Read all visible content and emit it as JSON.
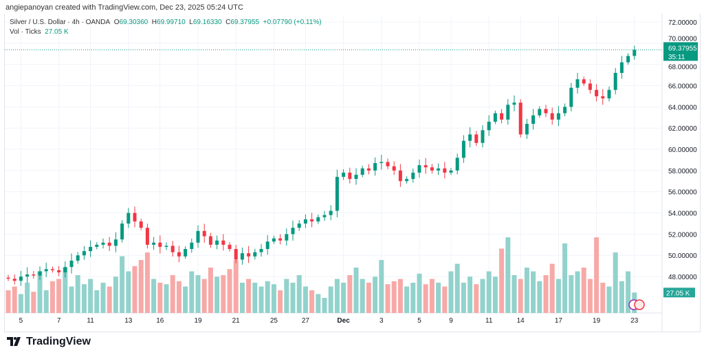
{
  "credit": "angiepanoyan created with TradingView.com, Dec 23, 2025 05:24 UTC",
  "legend": {
    "symbol": "Silver / U.S. Dollar · 4h · OANDA",
    "o_label": "O",
    "o": "69.30360",
    "h_label": "H",
    "h": "69.99710",
    "l_label": "L",
    "l": "69.16330",
    "c_label": "C",
    "c": "69.37955",
    "change": "+0.07790 (+0.11%)",
    "vol_label": "Vol · Ticks",
    "vol": "27.05 K"
  },
  "price_label": {
    "price": "69.37955",
    "countdown": "35:11"
  },
  "vol_label": "27.05 K",
  "logo": "TradingView",
  "colors": {
    "up": "#089981",
    "down": "#f23645",
    "vol_up": "#92d2cc",
    "vol_down": "#f7a9a7"
  },
  "chart_data": {
    "type": "candlestick",
    "title": "Silver / U.S. Dollar · 4h · OANDA",
    "yticks": [
      "72.00000",
      "70.00000",
      "68.00000",
      "66.00000",
      "64.00000",
      "62.00000",
      "60.00000",
      "58.00000",
      "56.00000",
      "54.00000",
      "52.00000",
      "50.00000",
      "48.00000"
    ],
    "ylim": [
      46.3,
      72.6
    ],
    "xticks": [
      {
        "label": "5",
        "i": 2
      },
      {
        "label": "7",
        "i": 8
      },
      {
        "label": "11",
        "i": 13
      },
      {
        "label": "13",
        "i": 19
      },
      {
        "label": "16",
        "i": 24
      },
      {
        "label": "19",
        "i": 30
      },
      {
        "label": "21",
        "i": 36
      },
      {
        "label": "25",
        "i": 42
      },
      {
        "label": "27",
        "i": 47
      },
      {
        "label": "Dec",
        "i": 53
      },
      {
        "label": "3",
        "i": 59
      },
      {
        "label": "5",
        "i": 65
      },
      {
        "label": "9",
        "i": 70
      },
      {
        "label": "11",
        "i": 76
      },
      {
        "label": "14",
        "i": 81
      },
      {
        "label": "17",
        "i": 87
      },
      {
        "label": "19",
        "i": 93
      },
      {
        "label": "23",
        "i": 99
      }
    ],
    "open0": 47.9,
    "close": [
      47.8,
      47.6,
      48.0,
      48.2,
      48.1,
      48.5,
      48.7,
      48.6,
      48.4,
      48.9,
      49.5,
      50.0,
      50.4,
      50.8,
      51.0,
      51.2,
      50.9,
      51.5,
      53.0,
      54.0,
      53.2,
      52.6,
      51.0,
      51.2,
      50.8,
      50.9,
      50.3,
      49.9,
      50.6,
      51.2,
      52.3,
      51.8,
      51.0,
      51.4,
      51.0,
      50.6,
      49.6,
      50.2,
      49.9,
      50.3,
      50.6,
      51.3,
      51.6,
      51.4,
      52.0,
      52.6,
      53.0,
      53.4,
      53.2,
      53.6,
      53.8,
      54.2,
      57.4,
      57.8,
      57.2,
      57.6,
      58.2,
      58.0,
      58.7,
      58.8,
      58.4,
      58.0,
      57.0,
      57.2,
      57.8,
      58.5,
      58.3,
      58.0,
      58.2,
      57.8,
      58.0,
      59.2,
      60.8,
      61.4,
      60.6,
      61.8,
      62.6,
      63.4,
      62.8,
      64.2,
      64.4,
      61.4,
      62.4,
      63.2,
      63.8,
      63.4,
      62.8,
      63.4,
      64.0,
      65.8,
      66.6,
      66.2,
      65.6,
      65.0,
      64.8,
      65.6,
      67.2,
      68.2,
      68.8,
      69.38
    ],
    "volume": [
      30,
      35,
      25,
      40,
      28,
      55,
      30,
      42,
      45,
      60,
      35,
      50,
      38,
      45,
      30,
      40,
      35,
      48,
      75,
      55,
      62,
      70,
      80,
      45,
      40,
      38,
      50,
      42,
      35,
      55,
      50,
      45,
      60,
      48,
      50,
      58,
      70,
      40,
      45,
      40,
      35,
      42,
      38,
      30,
      45,
      40,
      50,
      35,
      30,
      25,
      20,
      35,
      45,
      40,
      50,
      60,
      45,
      40,
      48,
      70,
      38,
      42,
      45,
      35,
      40,
      52,
      38,
      45,
      40,
      35,
      55,
      65,
      40,
      48,
      38,
      45,
      55,
      48,
      85,
      100,
      50,
      45,
      60,
      55,
      42,
      50,
      65,
      45,
      92,
      50,
      55,
      60,
      45,
      100,
      40,
      35,
      80,
      42,
      55,
      27
    ]
  }
}
